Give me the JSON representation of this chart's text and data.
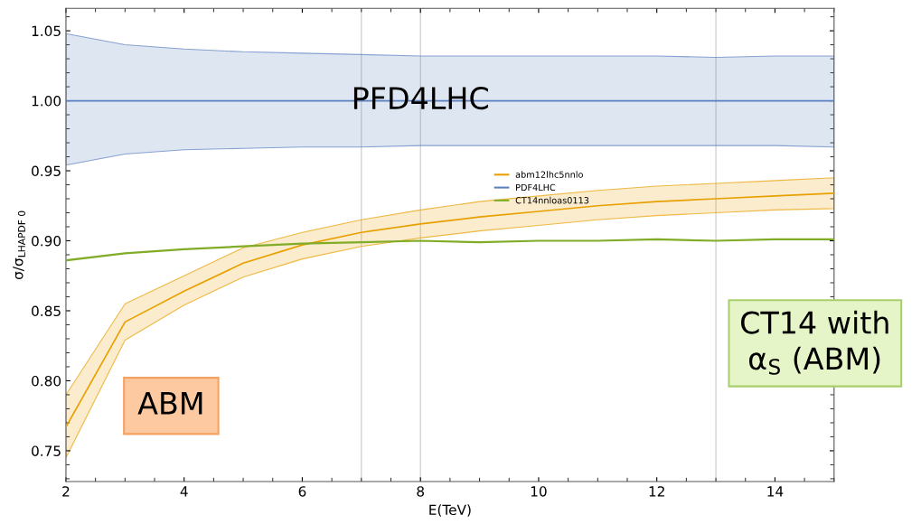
{
  "chart_data": {
    "type": "line",
    "xlabel": "E(TeV)",
    "ylabel": "σ/σ$_{LHAPDF 0}$",
    "x": [
      2,
      3,
      4,
      5,
      6,
      7,
      8,
      9,
      10,
      11,
      12,
      13,
      14,
      15
    ],
    "series": [
      {
        "name": "abm12lhc5nnlo",
        "color": "#e8a000",
        "values": [
          0.767,
          0.842,
          0.864,
          0.884,
          0.897,
          0.906,
          0.912,
          0.917,
          0.921,
          0.925,
          0.928,
          0.93,
          0.932,
          0.934
        ],
        "lower": [
          0.745,
          0.829,
          0.854,
          0.874,
          0.887,
          0.896,
          0.902,
          0.907,
          0.911,
          0.915,
          0.918,
          0.92,
          0.922,
          0.923
        ],
        "upper": [
          0.79,
          0.855,
          0.875,
          0.895,
          0.906,
          0.915,
          0.922,
          0.928,
          0.932,
          0.936,
          0.939,
          0.941,
          0.943,
          0.945
        ]
      },
      {
        "name": "PDF4LHC",
        "color": "#5a80c0",
        "values": [
          1.0,
          1.0,
          1.0,
          1.0,
          1.0,
          1.0,
          1.0,
          1.0,
          1.0,
          1.0,
          1.0,
          1.0,
          1.0,
          1.0
        ],
        "lower": [
          0.954,
          0.962,
          0.965,
          0.966,
          0.967,
          0.967,
          0.968,
          0.968,
          0.968,
          0.968,
          0.968,
          0.968,
          0.968,
          0.967
        ],
        "upper": [
          1.048,
          1.04,
          1.037,
          1.035,
          1.034,
          1.033,
          1.032,
          1.032,
          1.032,
          1.032,
          1.032,
          1.031,
          1.032,
          1.032
        ]
      },
      {
        "name": "CT14nnloas0113",
        "color": "#80ac28",
        "values": [
          0.886,
          0.891,
          0.894,
          0.896,
          0.898,
          0.899,
          0.9,
          0.899,
          0.9,
          0.9,
          0.901,
          0.9,
          0.901,
          0.901
        ]
      }
    ],
    "xlim": [
      2,
      15
    ],
    "xticks": [
      2,
      4,
      6,
      8,
      10,
      12,
      14
    ],
    "ylim": [
      0.728,
      1.066
    ],
    "yticks": [
      {
        "value": 0.75,
        "label": "0.75"
      },
      {
        "value": 0.8,
        "label": "0.80"
      },
      {
        "value": 0.85,
        "label": "0.85"
      },
      {
        "value": 0.9,
        "label": "0.90"
      },
      {
        "value": 0.95,
        "label": "0.95"
      },
      {
        "value": 1.0,
        "label": "1.00"
      },
      {
        "value": 1.05,
        "label": "1.05"
      }
    ],
    "ref_lines": [
      {
        "axis": "x",
        "value": 7,
        "color": "#c8c8c8"
      },
      {
        "axis": "x",
        "value": 8,
        "color": "#c8c8c8"
      },
      {
        "axis": "x",
        "value": 13,
        "color": "#c8c8c8"
      }
    ],
    "annotations": [
      {
        "text": "PFD4LHC",
        "x": 8,
        "y": 1.0
      },
      "ABM",
      "CT14 with\nα$_{S}$ (ABM)"
    ],
    "legend": "center",
    "grid": false,
    "marker": "none",
    "line_style": "solid"
  }
}
